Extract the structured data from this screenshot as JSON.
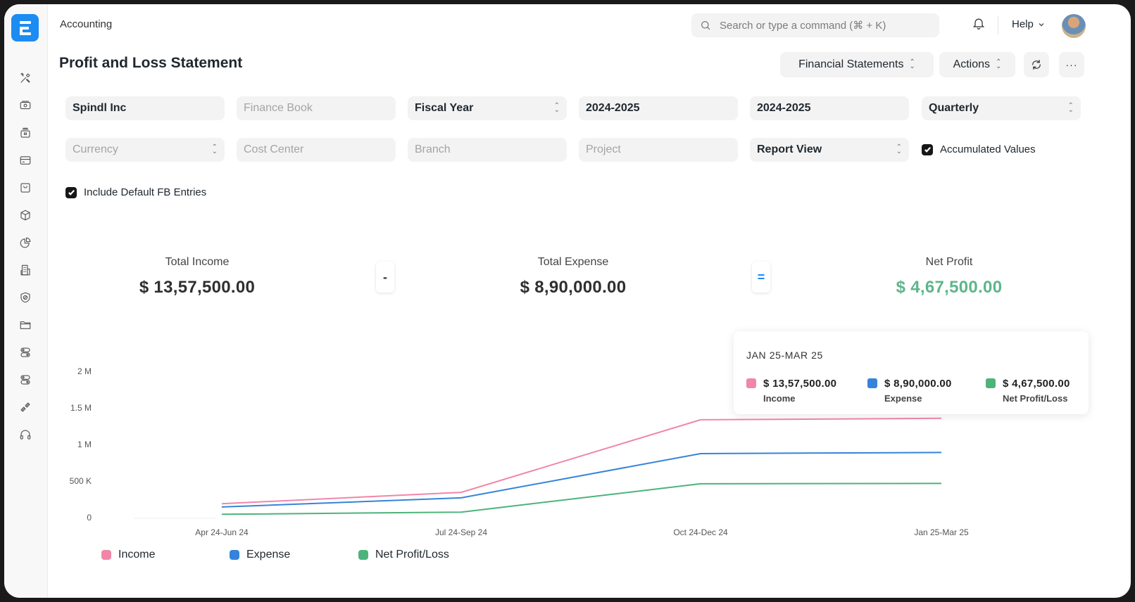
{
  "app": {
    "breadcrumb": "Accounting",
    "logo_letter": "E"
  },
  "topbar": {
    "search_placeholder": "Search or type a command (⌘ + K)",
    "help_label": "Help"
  },
  "sidebar": {
    "items": [
      {
        "icon": "tools-icon"
      },
      {
        "icon": "money-icon"
      },
      {
        "icon": "safe-icon"
      },
      {
        "icon": "card-icon"
      },
      {
        "icon": "shopping-bag-icon"
      },
      {
        "icon": "package-icon"
      },
      {
        "icon": "pie-chart-icon"
      },
      {
        "icon": "building-icon"
      },
      {
        "icon": "shield-icon"
      },
      {
        "icon": "folder-icon"
      },
      {
        "icon": "toggles-icon"
      },
      {
        "icon": "toggles-alt-icon"
      },
      {
        "icon": "plug-icon"
      },
      {
        "icon": "headset-icon"
      }
    ]
  },
  "page": {
    "title": "Profit and Loss Statement",
    "actions": {
      "financial_statements": "Financial Statements",
      "actions": "Actions",
      "more": "···"
    }
  },
  "filters": {
    "company": "Spindl Inc",
    "finance_book_placeholder": "Finance Book",
    "filter_based_on": "Fiscal Year",
    "from_fiscal_year": "2024-2025",
    "to_fiscal_year": "2024-2025",
    "periodicity": "Quarterly",
    "currency_placeholder": "Currency",
    "cost_center_placeholder": "Cost Center",
    "branch_placeholder": "Branch",
    "project_placeholder": "Project",
    "report_view": "Report View",
    "accumulated_values": {
      "label": "Accumulated Values",
      "checked": true
    },
    "include_default_fb": {
      "label": "Include Default FB Entries",
      "checked": true
    }
  },
  "summary": {
    "total_income": {
      "label": "Total Income",
      "value": "$ 13,57,500.00"
    },
    "minus": "-",
    "total_expense": {
      "label": "Total Expense",
      "value": "$ 8,90,000.00"
    },
    "equals": "=",
    "net_profit": {
      "label": "Net Profit",
      "value": "$ 4,67,500.00"
    }
  },
  "colors": {
    "income": "#f087a8",
    "expense": "#3584d9",
    "net": "#4db37b",
    "net_profit_text": "#5fb58b",
    "accent": "#1c8bf2"
  },
  "tooltip": {
    "title": "JAN 25-MAR 25",
    "items": [
      {
        "value": "$ 13,57,500.00",
        "name": "Income"
      },
      {
        "value": "$ 8,90,000.00",
        "name": "Expense"
      },
      {
        "value": "$ 4,67,500.00",
        "name": "Net Profit/Loss"
      }
    ]
  },
  "chart_data": {
    "type": "line",
    "title": "",
    "xlabel": "",
    "ylabel": "",
    "categories": [
      "Apr 24-Jun 24",
      "Jul 24-Sep 24",
      "Oct 24-Dec 24",
      "Jan 25-Mar 25"
    ],
    "yticks": [
      "0",
      "500 K",
      "1 M",
      "1.5 M",
      "2 M"
    ],
    "ylim": [
      0,
      2000000
    ],
    "grid": false,
    "legend_position": "bottom",
    "series": [
      {
        "name": "Income",
        "color": "#f087a8",
        "values": [
          190000,
          345000,
          1337500,
          1357500
        ]
      },
      {
        "name": "Expense",
        "color": "#3584d9",
        "values": [
          145000,
          270000,
          875000,
          890000
        ]
      },
      {
        "name": "Net Profit/Loss",
        "color": "#4db37b",
        "values": [
          45000,
          75000,
          462500,
          467500
        ]
      }
    ]
  }
}
